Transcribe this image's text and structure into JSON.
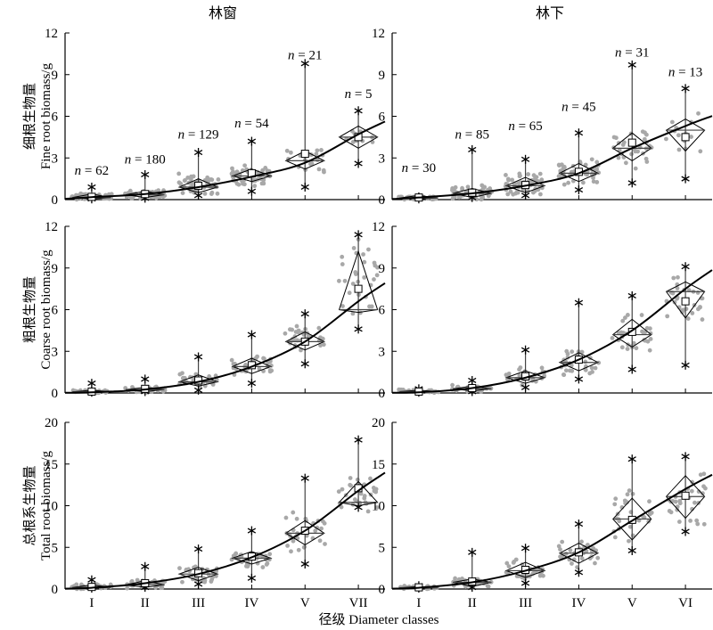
{
  "figure": {
    "col_titles": [
      "林窗",
      "林下"
    ],
    "row_ylabels": [
      {
        "zh": "细根生物量",
        "en": "Fine root biomass/g"
      },
      {
        "zh": "粗根生物量",
        "en": "Coarse root biomass/g"
      },
      {
        "zh": "总根系生物量",
        "en": "Total root biomass/g"
      }
    ],
    "xlabel": "径级 Diameter classes",
    "n_prefix": "n",
    "n_equals": " = "
  },
  "chart_data": [
    {
      "type": "scatter",
      "row": 0,
      "col": 0,
      "ylim": [
        0,
        12
      ],
      "yticks": [
        0,
        3,
        6,
        9,
        12
      ],
      "categories": [
        "I",
        "II",
        "III",
        "IV",
        "V",
        "VII"
      ],
      "show_xticklabels": false,
      "n": [
        62,
        180,
        129,
        54,
        21,
        5
      ],
      "n_y": [
        1.8,
        2.6,
        4.4,
        5.2,
        10.1,
        7.3
      ],
      "max": [
        0.9,
        1.8,
        3.4,
        4.2,
        9.8,
        6.4
      ],
      "min": [
        0.05,
        0.1,
        0.3,
        0.6,
        0.9,
        2.6
      ],
      "q_top": [
        0.4,
        0.6,
        1.5,
        2.2,
        3.5,
        5.3
      ],
      "median": [
        0.15,
        0.35,
        0.9,
        1.7,
        2.8,
        4.5
      ],
      "q_bot": [
        0.05,
        0.15,
        0.5,
        1.3,
        2.2,
        3.7
      ],
      "mean": [
        0.2,
        0.4,
        1.0,
        1.9,
        3.3,
        4.5
      ],
      "fit": [
        0.18,
        0.4,
        0.9,
        1.65,
        2.65,
        4.7
      ],
      "spread": [
        0.45,
        0.9,
        1.3,
        1.2,
        1.4,
        1.6
      ]
    },
    {
      "type": "scatter",
      "row": 0,
      "col": 1,
      "ylim": [
        0,
        12
      ],
      "yticks": [
        0,
        3,
        6,
        9,
        12
      ],
      "categories": [
        "I",
        "II",
        "III",
        "IV",
        "V",
        "VI"
      ],
      "show_xticklabels": false,
      "n": [
        30,
        85,
        65,
        45,
        31,
        13
      ],
      "n_y": [
        2.0,
        4.4,
        5.0,
        6.4,
        10.3,
        8.9
      ],
      "max": [
        0.2,
        3.6,
        2.9,
        4.8,
        9.7,
        8.0
      ],
      "min": [
        0.05,
        0.15,
        0.3,
        0.7,
        1.2,
        1.5
      ],
      "q_top": [
        0.3,
        0.8,
        1.6,
        2.6,
        4.8,
        5.8
      ],
      "median": [
        0.12,
        0.45,
        1.0,
        1.9,
        3.7,
        5.0
      ],
      "q_bot": [
        0.05,
        0.15,
        0.5,
        1.3,
        2.8,
        3.5
      ],
      "mean": [
        0.15,
        0.5,
        1.05,
        2.0,
        4.1,
        4.5
      ],
      "fit": [
        0.15,
        0.45,
        1.0,
        1.9,
        3.7,
        5.3
      ],
      "spread": [
        0.4,
        0.9,
        1.0,
        1.0,
        1.2,
        1.2
      ]
    },
    {
      "type": "scatter",
      "row": 1,
      "col": 0,
      "ylim": [
        0,
        12
      ],
      "yticks": [
        0,
        3,
        6,
        9,
        12
      ],
      "categories": [
        "I",
        "II",
        "III",
        "IV",
        "V",
        "VII"
      ],
      "show_xticklabels": false,
      "n": [],
      "n_y": [],
      "max": [
        0.7,
        1.0,
        2.6,
        4.2,
        5.7,
        11.4
      ],
      "min": [
        0.05,
        0.1,
        0.2,
        0.7,
        2.1,
        4.6
      ],
      "q_top": [
        0.2,
        0.4,
        1.3,
        2.5,
        4.4,
        10.2
      ],
      "median": [
        0.08,
        0.25,
        0.8,
        1.9,
        3.7,
        6.0
      ],
      "q_bot": [
        0.03,
        0.1,
        0.5,
        1.4,
        3.1,
        5.8
      ],
      "mean": [
        0.1,
        0.3,
        0.9,
        2.0,
        3.7,
        7.5
      ],
      "fit": [
        0.05,
        0.25,
        0.8,
        1.9,
        3.7,
        6.6
      ],
      "spread": [
        0.4,
        0.9,
        1.2,
        1.1,
        1.1,
        1.6
      ]
    },
    {
      "type": "scatter",
      "row": 1,
      "col": 1,
      "ylim": [
        0,
        12
      ],
      "yticks": [
        0,
        3,
        6,
        9,
        12
      ],
      "categories": [
        "I",
        "II",
        "III",
        "IV",
        "V",
        "VI"
      ],
      "show_xticklabels": false,
      "n": [],
      "n_y": [],
      "max": [
        0.3,
        0.9,
        3.1,
        6.5,
        7.0,
        9.1
      ],
      "min": [
        0.05,
        0.1,
        0.4,
        1.0,
        1.7,
        2.0
      ],
      "q_top": [
        0.2,
        0.5,
        1.6,
        2.9,
        5.3,
        8.0
      ],
      "median": [
        0.1,
        0.3,
        1.1,
        2.2,
        4.2,
        7.3
      ],
      "q_bot": [
        0.04,
        0.15,
        0.7,
        1.6,
        3.3,
        5.4
      ],
      "mean": [
        0.1,
        0.35,
        1.2,
        2.4,
        4.4,
        6.6
      ],
      "fit": [
        0.05,
        0.35,
        1.1,
        2.4,
        4.5,
        7.5
      ],
      "spread": [
        0.4,
        0.9,
        1.0,
        1.0,
        1.2,
        1.2
      ]
    },
    {
      "type": "scatter",
      "row": 2,
      "col": 0,
      "ylim": [
        0,
        20
      ],
      "yticks": [
        0,
        5,
        10,
        15,
        20
      ],
      "categories": [
        "I",
        "II",
        "III",
        "IV",
        "V",
        "VII"
      ],
      "show_xticklabels": true,
      "n": [],
      "n_y": [],
      "max": [
        1.1,
        2.7,
        4.8,
        7.0,
        13.3,
        17.9
      ],
      "min": [
        0.1,
        0.2,
        0.6,
        1.3,
        3.0,
        9.8
      ],
      "q_top": [
        0.5,
        1.0,
        2.6,
        4.5,
        8.2,
        12.9
      ],
      "median": [
        0.2,
        0.5,
        1.8,
        3.7,
        6.7,
        10.4
      ],
      "q_bot": [
        0.08,
        0.2,
        1.0,
        3.0,
        5.3,
        10.0
      ],
      "mean": [
        0.25,
        0.7,
        1.9,
        3.9,
        7.0,
        12.1
      ],
      "fit": [
        0.15,
        0.7,
        1.8,
        3.8,
        7.0,
        11.8
      ],
      "spread": [
        0.45,
        0.9,
        1.3,
        1.2,
        1.4,
        1.6
      ]
    },
    {
      "type": "scatter",
      "row": 2,
      "col": 1,
      "ylim": [
        0,
        20
      ],
      "yticks": [
        0,
        5,
        10,
        15,
        20
      ],
      "categories": [
        "I",
        "II",
        "III",
        "IV",
        "V",
        "VI"
      ],
      "show_xticklabels": true,
      "n": [],
      "n_y": [],
      "max": [
        0.4,
        4.4,
        4.9,
        7.8,
        15.6,
        15.9
      ],
      "min": [
        0.1,
        0.2,
        0.7,
        2.0,
        4.6,
        6.9
      ],
      "q_top": [
        0.3,
        1.2,
        3.2,
        5.5,
        10.9,
        13.6
      ],
      "median": [
        0.15,
        0.8,
        2.2,
        4.3,
        8.4,
        11.1
      ],
      "q_bot": [
        0.05,
        0.3,
        1.4,
        3.1,
        5.9,
        8.5
      ],
      "mean": [
        0.2,
        0.9,
        2.3,
        4.4,
        8.3,
        11.2
      ],
      "fit": [
        0.15,
        0.8,
        2.2,
        4.4,
        8.2,
        12.0
      ],
      "spread": [
        0.4,
        0.9,
        1.0,
        1.0,
        1.2,
        1.2
      ]
    }
  ]
}
